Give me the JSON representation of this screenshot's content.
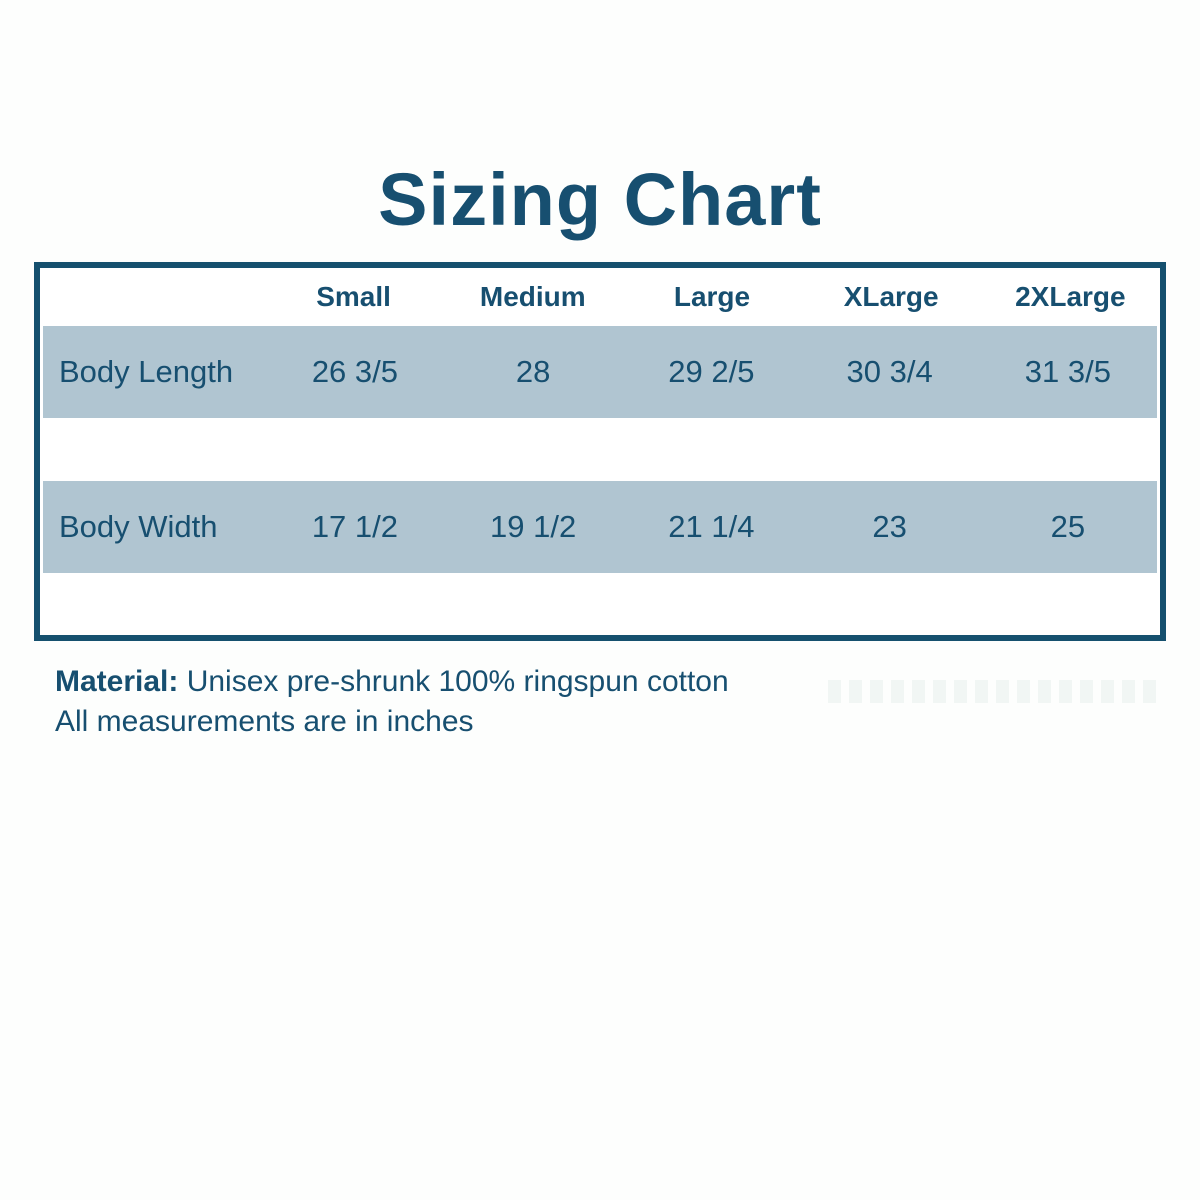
{
  "page": {
    "title": "Sizing Chart"
  },
  "table": {
    "columns": [
      "Small",
      "Medium",
      "Large",
      "XLarge",
      "2XLarge"
    ],
    "rows": [
      {
        "label": "Body Length",
        "values": [
          "26 3/5",
          "28",
          "29 2/5",
          "30 3/4",
          "31 3/5"
        ]
      },
      {
        "label": "Body Width",
        "values": [
          "17 1/2",
          "19 1/2",
          "21 1/4",
          "23",
          "25"
        ]
      }
    ]
  },
  "footer": {
    "material_label": "Material:",
    "material_text": " Unisex pre-shrunk 100% ringspun cotton",
    "measurements_note": "All measurements are in inches"
  },
  "colors": {
    "heading_text": "#174f70",
    "table_border": "#15506e",
    "row_highlight": "#b0c5d1",
    "background": "#fdfefd"
  },
  "chart_data": {
    "type": "table",
    "title": "Sizing Chart",
    "columns": [
      "Small",
      "Medium",
      "Large",
      "XLarge",
      "2XLarge"
    ],
    "rows": [
      {
        "label": "Body Length",
        "values_display": [
          "26 3/5",
          "28",
          "29 2/5",
          "30 3/4",
          "31 3/5"
        ],
        "values_inches": [
          26.6,
          28,
          29.4,
          30.75,
          31.6
        ]
      },
      {
        "label": "Body Width",
        "values_display": [
          "17 1/2",
          "19 1/2",
          "21 1/4",
          "23",
          "25"
        ],
        "values_inches": [
          17.5,
          19.5,
          21.25,
          23,
          25
        ]
      }
    ],
    "units": "inches",
    "notes": [
      "Material: Unisex pre-shrunk 100% ringspun cotton",
      "All measurements are in inches"
    ],
    "layout": {
      "row_band_color": "#b0c5d1",
      "border_color": "#15506e",
      "header_bold": true
    }
  }
}
